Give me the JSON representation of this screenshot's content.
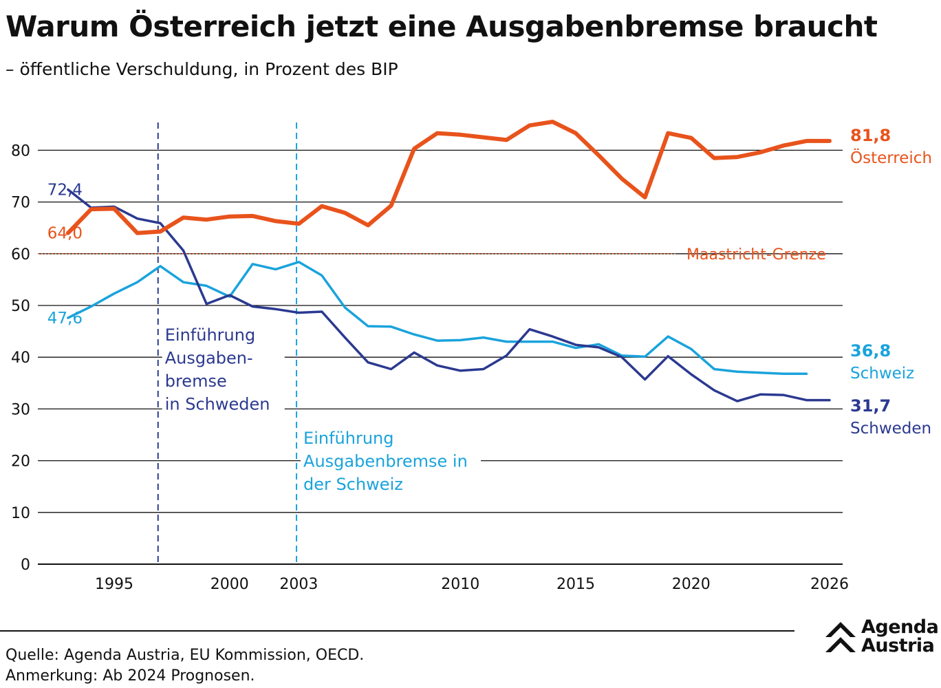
{
  "title": "Warum Österreich jetzt eine Ausgabenbremse braucht",
  "subtitle": "– öffentliche Verschuldung, in Prozent des BIP",
  "footer": {
    "source": "Quelle: Agenda Austria, EU Kommission, OECD.",
    "note": "Anmerkung: Ab 2024 Prognosen."
  },
  "logo": {
    "line1": "Agenda",
    "line2": "Austria"
  },
  "colors": {
    "oesterreich": "#e8531c",
    "schweiz": "#1aa3dc",
    "schweden": "#2b3990",
    "grid": "#111111"
  },
  "chart_data": {
    "type": "line",
    "xlim": [
      1993,
      2026
    ],
    "ylim": [
      0,
      85
    ],
    "yticks": [
      0,
      10,
      20,
      30,
      40,
      50,
      60,
      70,
      80
    ],
    "xticks": [
      {
        "value": 1995,
        "label": "1995"
      },
      {
        "value": 2000,
        "label": "2000"
      },
      {
        "value": 2003,
        "label": "2003"
      },
      {
        "value": 2010,
        "label": "2010"
      },
      {
        "value": 2015,
        "label": "2015"
      },
      {
        "value": 2020,
        "label": "2020"
      },
      {
        "value": 2026,
        "label": "2026"
      }
    ],
    "grid": "horizontal",
    "reference_line": {
      "value": 60,
      "label": "Maastricht-Grenze"
    },
    "vertical_markers": [
      {
        "x": 1996.9,
        "series": "schweden",
        "label": [
          "Einführung",
          "Ausgaben-",
          "bremse",
          "in Schweden"
        ]
      },
      {
        "x": 2002.9,
        "series": "schweiz",
        "label": [
          "Einführung",
          "Ausgabenbremse in",
          "der Schweiz"
        ]
      }
    ],
    "series": [
      {
        "id": "oesterreich",
        "name": "Österreich",
        "start_label": "64,0",
        "end_label": "81,8",
        "x": [
          1993,
          1994,
          1995,
          1996,
          1997,
          1998,
          1999,
          2000,
          2001,
          2002,
          2003,
          2004,
          2005,
          2006,
          2007,
          2008,
          2009,
          2010,
          2011,
          2012,
          2013,
          2014,
          2015,
          2016,
          2017,
          2018,
          2019,
          2020,
          2021,
          2022,
          2023,
          2024,
          2025,
          2026
        ],
        "values": [
          64.0,
          68.6,
          68.7,
          64.0,
          64.3,
          67.0,
          66.6,
          67.2,
          67.3,
          66.3,
          65.8,
          69.2,
          67.9,
          65.5,
          69.3,
          80.3,
          83.3,
          83.0,
          82.5,
          82.0,
          84.8,
          85.5,
          83.3,
          79.0,
          74.5,
          70.9,
          83.3,
          82.4,
          78.5,
          78.7,
          79.6,
          80.9,
          81.8,
          81.8
        ]
      },
      {
        "id": "schweiz",
        "name": "Schweiz",
        "start_label": "47,6",
        "end_label": "36,8",
        "x": [
          1993,
          1994,
          1995,
          1996,
          1997,
          1998,
          1999,
          2000,
          2001,
          2002,
          2003,
          2004,
          2005,
          2006,
          2007,
          2008,
          2009,
          2010,
          2011,
          2012,
          2013,
          2014,
          2015,
          2016,
          2017,
          2018,
          2019,
          2020,
          2021,
          2022,
          2023,
          2024,
          2025
        ],
        "values": [
          47.6,
          49.8,
          52.3,
          54.5,
          57.6,
          54.5,
          53.8,
          51.7,
          58.0,
          57.0,
          58.4,
          55.8,
          49.6,
          46.0,
          45.9,
          44.4,
          43.2,
          43.3,
          43.8,
          43.0,
          43.0,
          43.0,
          41.8,
          42.5,
          40.3,
          40.1,
          44.0,
          41.6,
          37.7,
          37.2,
          37.0,
          36.8,
          36.8
        ]
      },
      {
        "id": "schweden",
        "name": "Schweden",
        "start_label": "72,4",
        "end_label": "31,7",
        "x": [
          1993,
          1994,
          1995,
          1996,
          1997,
          1998,
          1999,
          2000,
          2001,
          2002,
          2003,
          2004,
          2005,
          2006,
          2007,
          2008,
          2009,
          2010,
          2011,
          2012,
          2013,
          2014,
          2015,
          2016,
          2017,
          2018,
          2019,
          2020,
          2021,
          2022,
          2023,
          2024,
          2025,
          2026
        ],
        "values": [
          72.4,
          68.9,
          69.1,
          66.8,
          65.9,
          60.6,
          50.3,
          52.0,
          49.8,
          49.3,
          48.6,
          48.8,
          43.8,
          39.0,
          37.7,
          40.9,
          38.4,
          37.4,
          37.7,
          40.3,
          45.4,
          44.0,
          42.4,
          41.9,
          40.0,
          35.7,
          40.2,
          36.7,
          33.6,
          31.5,
          32.8,
          32.7,
          31.7,
          31.7
        ]
      }
    ]
  }
}
